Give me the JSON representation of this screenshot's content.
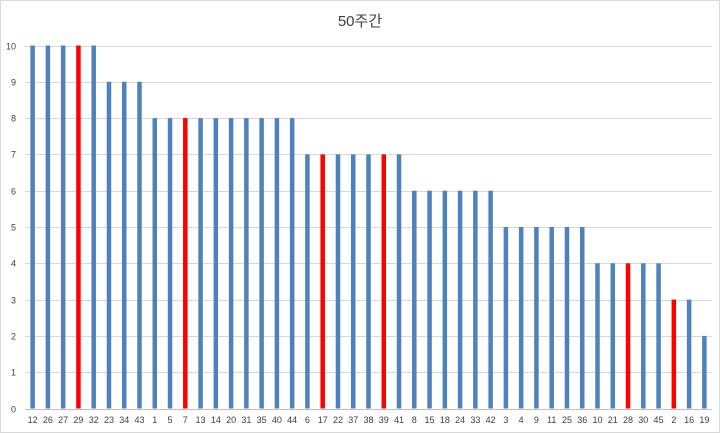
{
  "chart_data": {
    "type": "bar",
    "title": "50주간",
    "xlabel": "",
    "ylabel": "",
    "ylim": [
      0,
      10
    ],
    "yticks": [
      0,
      1,
      2,
      3,
      4,
      5,
      6,
      7,
      8,
      9,
      10
    ],
    "grid": true,
    "legend": "none",
    "categories": [
      "12",
      "26",
      "27",
      "29",
      "32",
      "23",
      "34",
      "43",
      "1",
      "5",
      "7",
      "13",
      "14",
      "20",
      "31",
      "35",
      "40",
      "44",
      "6",
      "17",
      "22",
      "37",
      "38",
      "39",
      "41",
      "8",
      "15",
      "18",
      "24",
      "33",
      "42",
      "3",
      "4",
      "9",
      "11",
      "25",
      "36",
      "10",
      "21",
      "28",
      "30",
      "45",
      "2",
      "16",
      "19"
    ],
    "values": [
      10,
      10,
      10,
      10,
      10,
      9,
      9,
      9,
      8,
      8,
      8,
      8,
      8,
      8,
      8,
      8,
      8,
      8,
      7,
      7,
      7,
      7,
      7,
      7,
      7,
      6,
      6,
      6,
      6,
      6,
      6,
      5,
      5,
      5,
      5,
      5,
      5,
      4,
      4,
      4,
      4,
      4,
      3,
      3,
      2
    ],
    "highlighted_categories": [
      "29",
      "7",
      "17",
      "39",
      "28",
      "2"
    ],
    "colors": {
      "default": "#4f81bd",
      "highlight": "#ff0000"
    }
  }
}
